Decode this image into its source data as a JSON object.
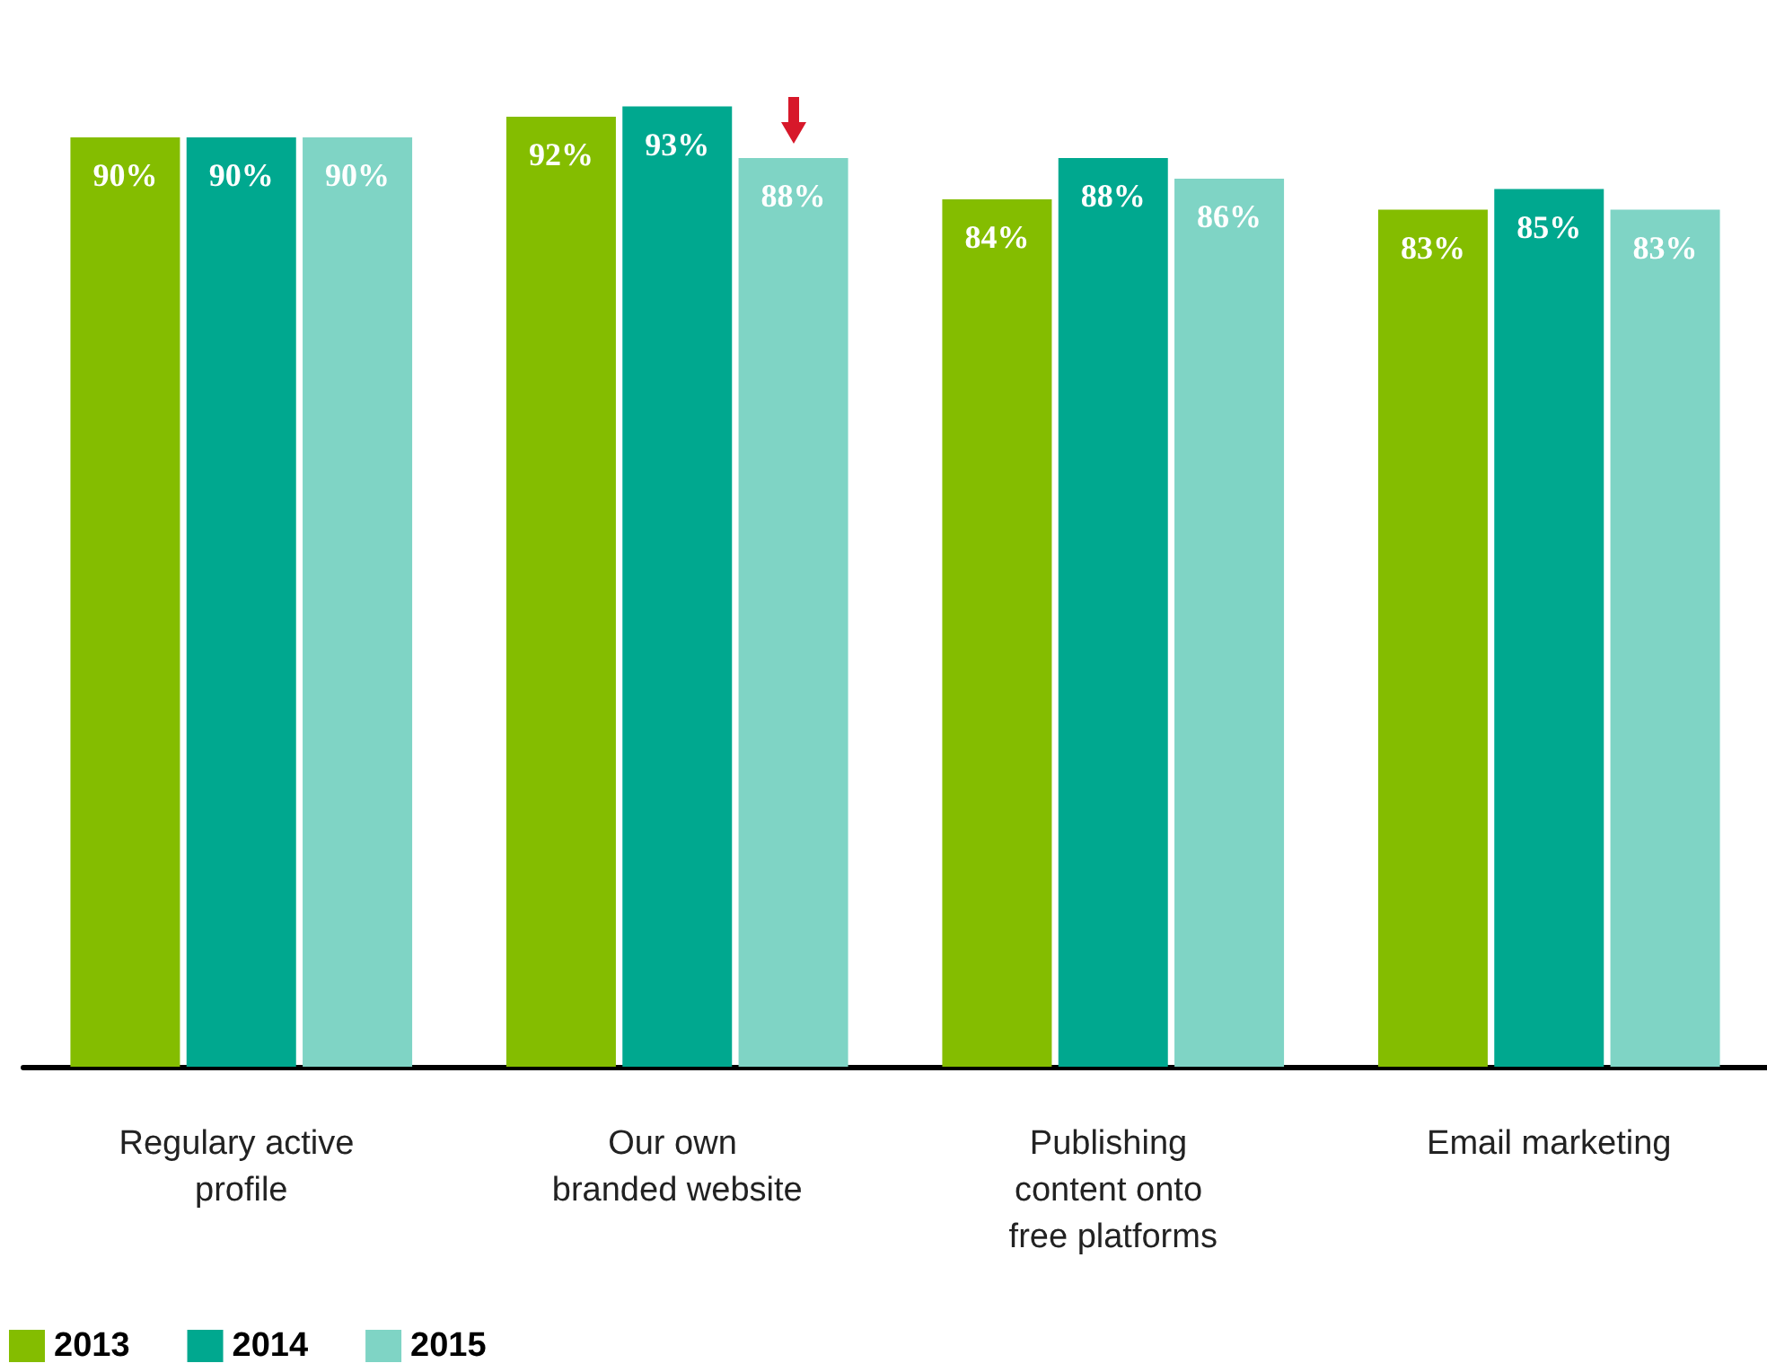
{
  "chart_data": {
    "type": "bar",
    "categories": [
      "Regulary active profile",
      "Our own branded website",
      "Publishing content onto free platforms",
      "Email marketing"
    ],
    "series": [
      {
        "name": "2013",
        "color": "#84bd00",
        "values": [
          90,
          92,
          84,
          83
        ],
        "value_labels": [
          "90%",
          "92%",
          "84%",
          "83%"
        ]
      },
      {
        "name": "2014",
        "color": "#00a88f",
        "values": [
          90,
          93,
          88,
          85
        ],
        "value_labels": [
          "90%",
          "93%",
          "88%",
          "85%"
        ]
      },
      {
        "name": "2015",
        "color": "#7fd4c5",
        "values": [
          90,
          88,
          86,
          83
        ],
        "value_labels": [
          "90%",
          "88%",
          "86%",
          "83%"
        ]
      }
    ],
    "legend": "bottom left",
    "grid": false
  }
}
